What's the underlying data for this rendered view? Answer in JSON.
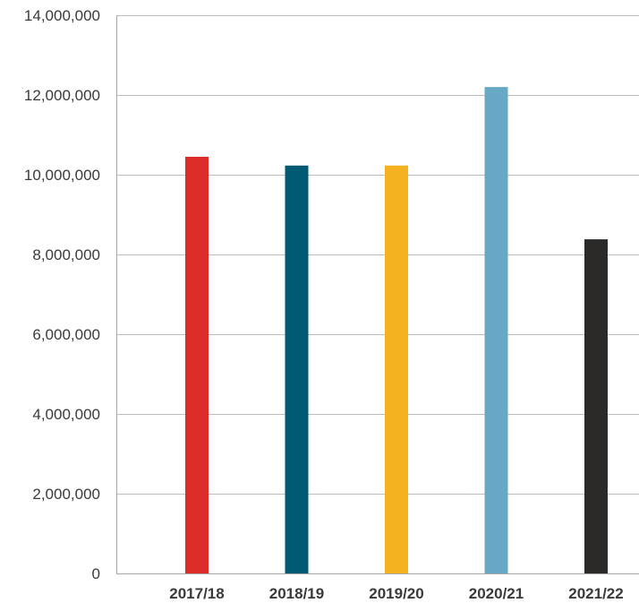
{
  "chart_data": {
    "type": "bar",
    "title": "",
    "xlabel": "",
    "ylabel": "",
    "categories": [
      "2017/18",
      "2018/19",
      "2019/20",
      "2020/21",
      "2021/22"
    ],
    "values": [
      10450000,
      10230000,
      10230000,
      12200000,
      8380000
    ],
    "colors": [
      "#dc2d2b",
      "#005a71",
      "#f4b120",
      "#67a8c6",
      "#2b2a28"
    ],
    "ylim": [
      0,
      14000000
    ],
    "yticks": [
      0,
      2000000,
      4000000,
      6000000,
      8000000,
      10000000,
      12000000,
      14000000
    ],
    "ytick_labels": [
      "0",
      "2,000,000",
      "4,000,000",
      "6,000,000",
      "8,000,000",
      "10,000,000",
      "12,000,000",
      "14,000,000"
    ],
    "grid": true,
    "legend": "none"
  }
}
